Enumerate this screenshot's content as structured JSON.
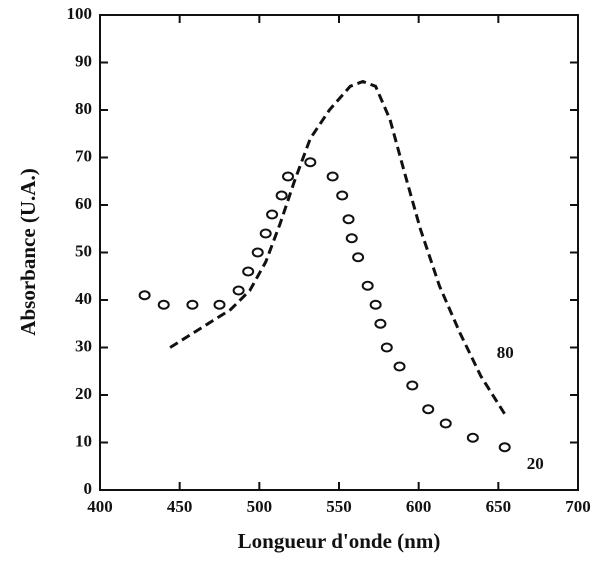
{
  "chart_data": {
    "type": "scatter-line",
    "x_label": "Longueur d'onde (nm)",
    "y_label": "Absorbance (U.A.)",
    "xlim": [
      400,
      700
    ],
    "xticks": [
      400,
      450,
      500,
      550,
      600,
      650,
      700
    ],
    "ylim": [
      0,
      100
    ],
    "yticks": [
      0,
      10,
      20,
      30,
      40,
      50,
      60,
      70,
      80,
      90,
      100
    ],
    "series": [
      {
        "name": "20",
        "color": "#111111",
        "style": "circles",
        "x": [
          428,
          440,
          458,
          475,
          487,
          493,
          499,
          504,
          508,
          514,
          518,
          532,
          546,
          552,
          556,
          558,
          562,
          568,
          573,
          576,
          580,
          588,
          596,
          606,
          617,
          634,
          654
        ],
        "values": [
          41,
          39,
          39,
          39,
          42,
          46,
          50,
          54,
          58,
          62,
          66,
          69,
          66,
          62,
          57,
          53,
          49,
          43,
          39,
          35,
          30,
          26,
          22,
          17,
          14,
          11,
          9
        ]
      },
      {
        "name": "80",
        "color": "#111111",
        "style": "dashed",
        "x": [
          444,
          463,
          482,
          494,
          504,
          513,
          522,
          532,
          544,
          557,
          565,
          573,
          582,
          591,
          601,
          613,
          626,
          639,
          654
        ],
        "values": [
          30,
          34,
          38,
          42,
          48,
          56,
          65,
          74,
          80,
          85,
          86,
          85,
          78,
          67,
          55,
          43,
          33,
          24,
          16
        ]
      }
    ]
  }
}
